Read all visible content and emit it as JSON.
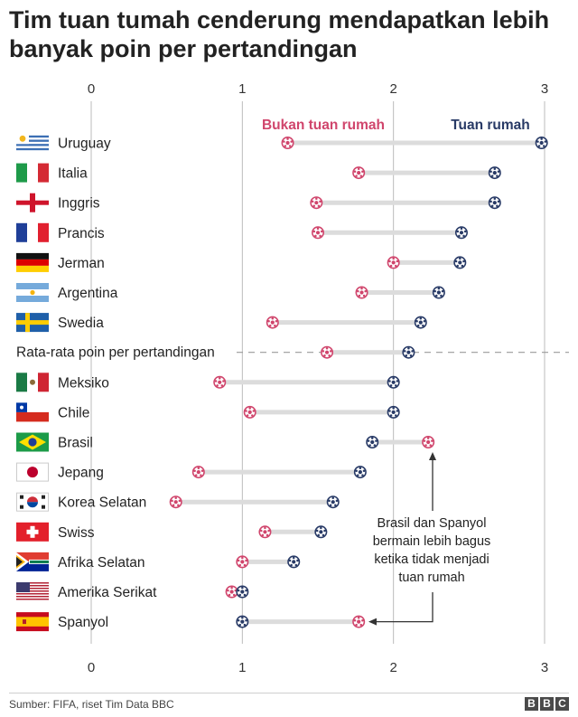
{
  "title": "Tim tuan tumah cenderung mendapatkan lebih banyak poin per pertandingan",
  "source": "Sumber: FIFA, riset Tim Data BBC",
  "logo": [
    "B",
    "B",
    "C"
  ],
  "colors": {
    "away": "#d0456c",
    "home": "#283a66",
    "range": "#dcdcdc",
    "grid": "#bbbbbb"
  },
  "annotation": [
    "Brasil dan Spanyol",
    "bermain lebih bagus",
    "ketika tidak menjadi",
    "tuan rumah"
  ],
  "chart_data": {
    "type": "dumbbell",
    "title": "Tim tuan tumah cenderung mendapatkan lebih banyak poin per pertandingan",
    "xlim": [
      0,
      3
    ],
    "xticks": [
      "0",
      "1",
      "2",
      "3"
    ],
    "grid": true,
    "legend": {
      "away": "Bukan tuan rumah",
      "home": "Tuan rumah",
      "placement": "top"
    },
    "rows": [
      {
        "label": "Uruguay",
        "flag": "uruguay",
        "away": 1.3,
        "home": 2.98
      },
      {
        "label": "Italia",
        "flag": "italy",
        "away": 1.77,
        "home": 2.67
      },
      {
        "label": "Inggris",
        "flag": "england",
        "away": 1.49,
        "home": 2.67
      },
      {
        "label": "Prancis",
        "flag": "france",
        "away": 1.5,
        "home": 2.45
      },
      {
        "label": "Jerman",
        "flag": "germany",
        "away": 2.0,
        "home": 2.44
      },
      {
        "label": "Argentina",
        "flag": "argentina",
        "away": 1.79,
        "home": 2.3
      },
      {
        "label": "Swedia",
        "flag": "sweden",
        "away": 1.2,
        "home": 2.18
      },
      {
        "label": "Rata-rata poin per pertandingan",
        "flag": "",
        "away": 1.56,
        "home": 2.1,
        "average": true
      },
      {
        "label": "Meksiko",
        "flag": "mexico",
        "away": 0.85,
        "home": 2.0
      },
      {
        "label": "Chile",
        "flag": "chile",
        "away": 1.05,
        "home": 2.0
      },
      {
        "label": "Brasil",
        "flag": "brazil",
        "away": 2.23,
        "home": 1.86
      },
      {
        "label": "Jepang",
        "flag": "japan",
        "away": 0.71,
        "home": 1.78
      },
      {
        "label": "Korea Selatan",
        "flag": "korea",
        "away": 0.56,
        "home": 1.6
      },
      {
        "label": "Swiss",
        "flag": "switzerland",
        "away": 1.15,
        "home": 1.52
      },
      {
        "label": "Afrika Selatan",
        "flag": "southafrica",
        "away": 1.0,
        "home": 1.34
      },
      {
        "label": "Amerika Serikat",
        "flag": "usa",
        "away": 0.93,
        "home": 1.0
      },
      {
        "label": "Spanyol",
        "flag": "spain",
        "away": 1.77,
        "home": 1.0
      }
    ]
  }
}
